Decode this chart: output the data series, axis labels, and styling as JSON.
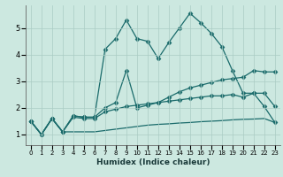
{
  "xlabel": "Humidex (Indice chaleur)",
  "background_color": "#cce8e0",
  "grid_color": "#aaccc4",
  "line_color": "#1a6b6b",
  "xlim": [
    -0.5,
    23.5
  ],
  "ylim": [
    0.6,
    5.85
  ],
  "xticks": [
    0,
    1,
    2,
    3,
    4,
    5,
    6,
    7,
    8,
    9,
    10,
    11,
    12,
    13,
    14,
    15,
    16,
    17,
    18,
    19,
    20,
    21,
    22,
    23
  ],
  "yticks": [
    1,
    2,
    3,
    4,
    5
  ],
  "series": [
    {
      "x": [
        0,
        1,
        2,
        3,
        4,
        5,
        6,
        7,
        8,
        9,
        10,
        11,
        12,
        13,
        14,
        15,
        16,
        17,
        18,
        19,
        20,
        21,
        22,
        23
      ],
      "y": [
        1.5,
        1.0,
        1.6,
        1.1,
        1.7,
        1.65,
        1.65,
        4.2,
        4.6,
        5.3,
        4.6,
        4.5,
        3.85,
        4.45,
        5.0,
        5.55,
        5.2,
        4.8,
        4.3,
        3.4,
        2.55,
        2.55,
        2.05,
        1.45
      ],
      "marker": "D",
      "markersize": 2.5,
      "linewidth": 0.9
    },
    {
      "x": [
        0,
        1,
        2,
        3,
        4,
        5,
        6,
        7,
        8,
        9,
        10,
        11,
        12,
        13,
        14,
        15,
        16,
        17,
        18,
        19,
        20,
        21,
        22,
        23
      ],
      "y": [
        1.5,
        1.0,
        1.6,
        1.1,
        1.7,
        1.65,
        1.65,
        2.0,
        2.2,
        3.4,
        2.0,
        2.1,
        2.2,
        2.4,
        2.6,
        2.75,
        2.85,
        2.95,
        3.05,
        3.1,
        3.15,
        3.4,
        3.35,
        3.35
      ],
      "marker": "D",
      "markersize": 2.5,
      "linewidth": 0.9
    },
    {
      "x": [
        0,
        1,
        2,
        3,
        4,
        5,
        6,
        7,
        8,
        9,
        10,
        11,
        12,
        13,
        14,
        15,
        16,
        17,
        18,
        19,
        20,
        21,
        22,
        23
      ],
      "y": [
        1.5,
        1.0,
        1.6,
        1.1,
        1.65,
        1.6,
        1.6,
        1.85,
        1.95,
        2.05,
        2.1,
        2.15,
        2.2,
        2.25,
        2.3,
        2.35,
        2.4,
        2.45,
        2.45,
        2.5,
        2.4,
        2.55,
        2.55,
        2.05
      ],
      "marker": "D",
      "markersize": 2.5,
      "linewidth": 0.9
    },
    {
      "x": [
        0,
        1,
        2,
        3,
        4,
        5,
        6,
        7,
        8,
        9,
        10,
        11,
        12,
        13,
        14,
        15,
        16,
        17,
        18,
        19,
        20,
        21,
        22,
        23
      ],
      "y": [
        1.5,
        1.0,
        1.6,
        1.1,
        1.1,
        1.1,
        1.1,
        1.15,
        1.2,
        1.25,
        1.3,
        1.35,
        1.38,
        1.4,
        1.43,
        1.45,
        1.48,
        1.5,
        1.52,
        1.55,
        1.57,
        1.58,
        1.6,
        1.45
      ],
      "marker": null,
      "markersize": 0,
      "linewidth": 0.9
    }
  ]
}
